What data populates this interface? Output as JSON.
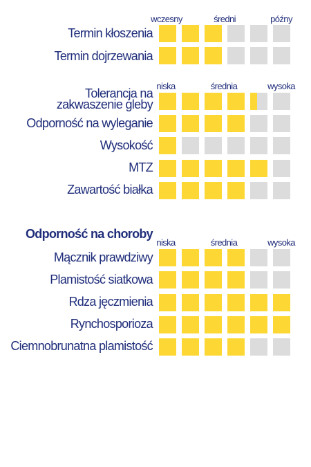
{
  "colors": {
    "filled": "#fdd835",
    "empty": "#dcdcdc",
    "text": "#1f2d7a"
  },
  "groups": [
    {
      "scale": [
        "wczesny",
        "średni",
        "późny"
      ],
      "rows": [
        {
          "label": "Termin kłoszenia",
          "value": 3
        },
        {
          "label": "Termin dojrzewania",
          "value": 3
        }
      ]
    },
    {
      "scale": [
        "niska",
        "średnia",
        "wysoka"
      ],
      "rows": [
        {
          "label": "Tolerancja na zakwaszenie gleby",
          "value": 4.4
        },
        {
          "label": "Odporność na wyleganie",
          "value": 4
        },
        {
          "label": "Wysokość",
          "value": 1
        },
        {
          "label": "MTZ",
          "value": 5
        },
        {
          "label": "Zawartość białka",
          "value": 4
        }
      ]
    },
    {
      "title": "Odporność na choroby",
      "scale": [
        "niska",
        "średnia",
        "wysoka"
      ],
      "rows": [
        {
          "label": "Mącznik prawdziwy",
          "value": 4
        },
        {
          "label": "Plamistość siatkowa",
          "value": 4
        },
        {
          "label": "Rdza jęczmienia",
          "value": 6
        },
        {
          "label": "Rynchosporioza",
          "value": 6
        },
        {
          "label": "Ciemnobrunatna plamistość",
          "value": 4
        }
      ]
    }
  ]
}
